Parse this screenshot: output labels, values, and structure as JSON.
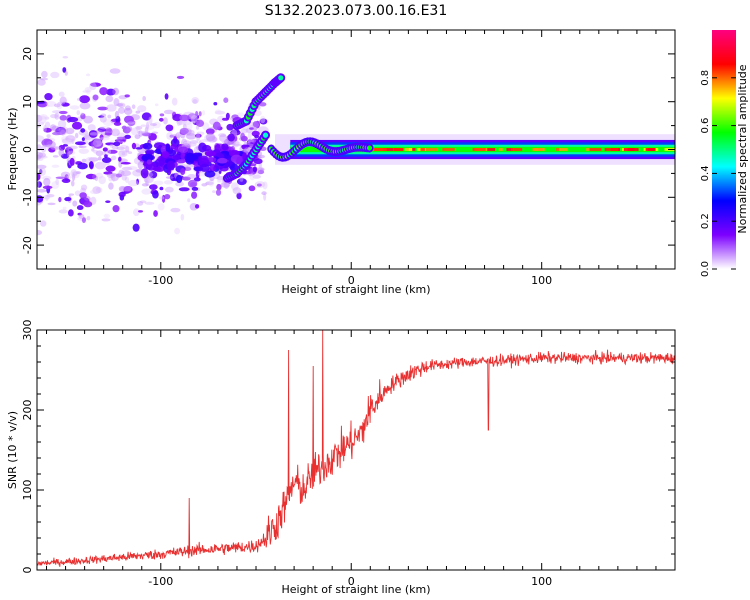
{
  "figure_title": "S132.2023.073.00.16.E31",
  "chart_data": [
    {
      "type": "heatmap",
      "title": "S132.2023.073.00.16.E31",
      "xlabel": "Height of straight line (km)",
      "ylabel": "Frequency (Hz)",
      "xlim": [
        -165,
        170
      ],
      "ylim": [
        -25,
        25
      ],
      "xticks": [
        -100,
        0,
        100
      ],
      "yticks": [
        -20,
        -10,
        0,
        10,
        20
      ],
      "colorbar": {
        "label": "Normalized spectral amplitude",
        "range": [
          0,
          1
        ],
        "ticks": [
          "0.0",
          "0.2",
          "0.4",
          "0.6",
          "0.8"
        ]
      },
      "colormap": [
        "#ffffff",
        "#7d00ff",
        "#0000ff",
        "#00ffff",
        "#00ff00",
        "#ffff00",
        "#ff0000",
        "#ff0080"
      ],
      "features": {
        "noise_region_x": [
          -165,
          -45
        ],
        "chirp_upper_branch": {
          "x": [
            -60,
            -55,
            -50,
            -45,
            -40,
            -37
          ],
          "y": [
            5,
            6,
            10,
            12,
            14,
            15
          ]
        },
        "chirp_lower_branch": {
          "x": [
            -65,
            -60,
            -55,
            -50,
            -45
          ],
          "y": [
            -6,
            -5,
            -3,
            0,
            3
          ]
        },
        "carrier_band": {
          "x_start": -40,
          "x_end": 170,
          "y_center": 0,
          "y_halfwidth": 2
        }
      }
    },
    {
      "type": "line",
      "xlabel": "Height of straight line (km)",
      "ylabel": "SNR (10 * v/v)",
      "xlim": [
        -165,
        170
      ],
      "ylim": [
        0,
        300
      ],
      "xticks": [
        -100,
        0,
        100
      ],
      "yticks": [
        0,
        100,
        200,
        300
      ],
      "color": "#e83030",
      "profile": {
        "x": [
          -165,
          -140,
          -120,
          -100,
          -80,
          -60,
          -50,
          -45,
          -40,
          -35,
          -30,
          -25,
          -20,
          -15,
          -10,
          -5,
          0,
          5,
          10,
          15,
          20,
          30,
          40,
          60,
          80,
          100,
          120,
          140,
          170
        ],
        "y": [
          8,
          12,
          16,
          20,
          25,
          28,
          30,
          40,
          55,
          80,
          110,
          100,
          120,
          130,
          140,
          150,
          160,
          170,
          200,
          215,
          230,
          245,
          255,
          260,
          262,
          265,
          265,
          265,
          265
        ]
      },
      "spikes": [
        {
          "x": -85,
          "y": 90
        },
        {
          "x": -33,
          "y": 275
        },
        {
          "x": -20,
          "y": 255
        },
        {
          "x": -15,
          "y": 300
        },
        {
          "x": 72,
          "y": 175
        }
      ]
    }
  ]
}
